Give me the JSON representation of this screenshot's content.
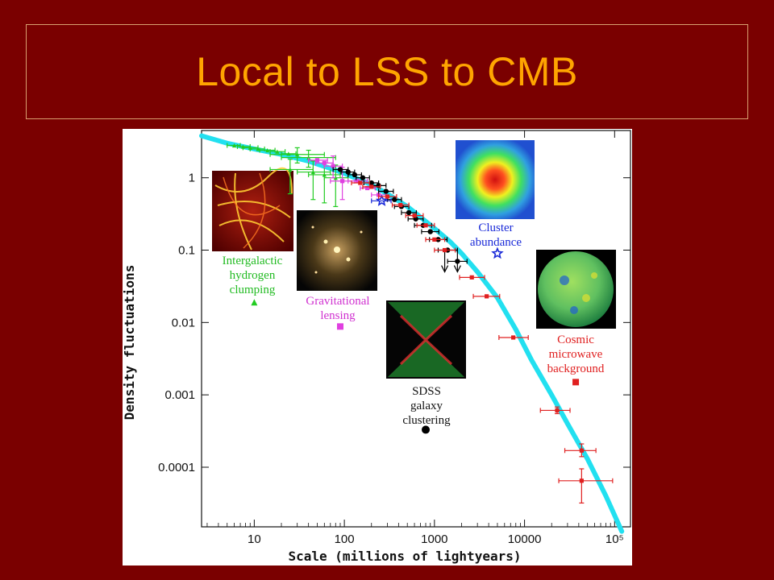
{
  "slide": {
    "title": "Local to LSS to CMB"
  },
  "colors": {
    "background": "#7a0000",
    "title": "#ffa500",
    "fit_curve": "#22e0f0",
    "lyman_alpha": "#22cc22",
    "lensing": "#e040e0",
    "sdss": "#000000",
    "cluster": "#1a2ad8",
    "cmb": "#e02020"
  },
  "insets": {
    "lyman": {
      "label_lines": [
        "Intergalactic",
        "hydrogen",
        "clumping"
      ]
    },
    "lensing": {
      "label_lines": [
        "Gravitational",
        "lensing"
      ]
    },
    "sdss": {
      "label_lines": [
        "SDSS",
        "galaxy",
        "clustering"
      ]
    },
    "cluster": {
      "label_lines": [
        "Cluster",
        "abundance"
      ]
    },
    "cmb": {
      "label_lines": [
        "Cosmic",
        "microwave",
        "background"
      ]
    }
  },
  "chart_data": {
    "type": "scatter",
    "xlabel": "Scale (millions of lightyears)",
    "ylabel": "Density fluctuations",
    "x_scale": "log",
    "y_scale": "log",
    "xlim": [
      2.6,
      150000
    ],
    "ylim": [
      1.5e-05,
      4.5
    ],
    "x_ticks": [
      {
        "value": 10,
        "label": "10"
      },
      {
        "value": 100,
        "label": "100"
      },
      {
        "value": 1000,
        "label": "1000"
      },
      {
        "value": 10000,
        "label": "10000"
      },
      {
        "value": 100000,
        "label": "10⁵"
      }
    ],
    "y_ticks": [
      {
        "value": 1,
        "label": "1"
      },
      {
        "value": 0.1,
        "label": "0.1"
      },
      {
        "value": 0.01,
        "label": "0.01"
      },
      {
        "value": 0.001,
        "label": "0.001"
      },
      {
        "value": 0.0001,
        "label": "0.0001"
      }
    ],
    "fit_curve": [
      [
        2.6,
        3.8
      ],
      [
        5,
        3.0
      ],
      [
        10,
        2.5
      ],
      [
        20,
        2.1
      ],
      [
        40,
        1.7
      ],
      [
        70,
        1.35
      ],
      [
        100,
        1.15
      ],
      [
        200,
        0.8
      ],
      [
        300,
        0.6
      ],
      [
        500,
        0.4
      ],
      [
        800,
        0.25
      ],
      [
        1000,
        0.2
      ],
      [
        1500,
        0.13
      ],
      [
        2000,
        0.09
      ],
      [
        3000,
        0.05
      ],
      [
        5000,
        0.022
      ],
      [
        8000,
        0.008
      ],
      [
        12000,
        0.003
      ],
      [
        20000,
        0.001
      ],
      [
        30000,
        0.0004
      ],
      [
        50000,
        0.00013
      ],
      [
        80000,
        4e-05
      ],
      [
        120000,
        1.3e-05
      ]
    ],
    "series": [
      {
        "name": "Intergalactic hydrogen clumping",
        "color_key": "lyman_alpha",
        "marker": "triangle",
        "legend_point": [
          10,
          0.019
        ],
        "points": [
          {
            "x": 6,
            "y": 2.8,
            "xerr": [
              5,
              7
            ]
          },
          {
            "x": 7.5,
            "y": 2.7,
            "xerr": [
              6.5,
              9
            ]
          },
          {
            "x": 9,
            "y": 2.6,
            "xerr": [
              7.5,
              11
            ]
          },
          {
            "x": 11,
            "y": 2.5,
            "xerr": [
              9,
              13
            ]
          },
          {
            "x": 14,
            "y": 2.4,
            "xerr": [
              11.5,
              17
            ]
          },
          {
            "x": 18,
            "y": 2.3,
            "xerr": [
              15,
              22
            ]
          },
          {
            "x": 24,
            "y": 2.15,
            "xerr": [
              20,
              29
            ]
          },
          {
            "x": 30,
            "y": 2.1,
            "xerr": [
              15,
              60
            ],
            "yerr": [
              1.6,
              2.6
            ]
          },
          {
            "x": 40,
            "y": 1.9,
            "xerr": [
              20,
              80
            ],
            "yerr": [
              1.4,
              2.4
            ]
          },
          {
            "x": 25,
            "y": 1.3,
            "xerr": [
              15,
              45
            ],
            "yerr": [
              0.6,
              1.8
            ]
          },
          {
            "x": 45,
            "y": 1.2,
            "xerr": [
              30,
              70
            ],
            "yerr": [
              0.5,
              1.7
            ]
          },
          {
            "x": 60,
            "y": 1.1,
            "xerr": [
              40,
              90
            ],
            "yerr": [
              0.45,
              1.6
            ]
          },
          {
            "x": 80,
            "y": 1.0,
            "xerr": [
              60,
              110
            ],
            "yerr": [
              0.4,
              1.5
            ]
          }
        ]
      },
      {
        "name": "Gravitational lensing",
        "color_key": "lensing",
        "marker": "square",
        "legend_point": [
          90,
          0.0088
        ],
        "points": [
          {
            "x": 50,
            "y": 1.75,
            "xerr": [
              40,
              65
            ]
          },
          {
            "x": 60,
            "y": 1.6,
            "xerr": [
              48,
              75
            ]
          },
          {
            "x": 75,
            "y": 1.45,
            "xerr": [
              60,
              95
            ],
            "yerr": [
              1.0,
              2.0
            ]
          },
          {
            "x": 95,
            "y": 0.9,
            "xerr": [
              70,
              130
            ],
            "yerr": [
              0.5,
              1.4
            ]
          },
          {
            "x": 140,
            "y": 0.9,
            "xerr": [
              110,
              180
            ]
          },
          {
            "x": 180,
            "y": 0.72,
            "xerr": [
              150,
              220
            ]
          },
          {
            "x": 240,
            "y": 0.58,
            "xerr": [
              200,
              290
            ]
          }
        ]
      },
      {
        "name": "SDSS galaxy clustering",
        "color_key": "sdss",
        "marker": "circle",
        "legend_point": [
          800,
          0.00033
        ],
        "upper_limits": [
          1300,
          1800
        ],
        "points": [
          {
            "x": 90,
            "y": 1.3,
            "xerr": [
              75,
              110
            ]
          },
          {
            "x": 110,
            "y": 1.2,
            "xerr": [
              92,
              130
            ]
          },
          {
            "x": 130,
            "y": 1.1,
            "xerr": [
              110,
              155
            ]
          },
          {
            "x": 160,
            "y": 1.0,
            "xerr": [
              135,
              190
            ]
          },
          {
            "x": 200,
            "y": 0.85,
            "xerr": [
              165,
              240
            ]
          },
          {
            "x": 240,
            "y": 0.78,
            "xerr": [
              200,
              290
            ]
          },
          {
            "x": 290,
            "y": 0.65,
            "xerr": [
              240,
              350
            ]
          },
          {
            "x": 360,
            "y": 0.5,
            "xerr": [
              300,
              430
            ]
          },
          {
            "x": 430,
            "y": 0.4,
            "xerr": [
              360,
              520
            ]
          },
          {
            "x": 520,
            "y": 0.33,
            "xerr": [
              430,
              630
            ]
          },
          {
            "x": 620,
            "y": 0.27,
            "xerr": [
              510,
              750
            ]
          },
          {
            "x": 750,
            "y": 0.22,
            "xerr": [
              600,
              930
            ]
          },
          {
            "x": 900,
            "y": 0.18,
            "xerr": [
              720,
              1120
            ]
          },
          {
            "x": 1100,
            "y": 0.14,
            "xerr": [
              880,
              1380
            ]
          },
          {
            "x": 1400,
            "y": 0.1,
            "xerr": [
              1100,
              1800
            ]
          },
          {
            "x": 1800,
            "y": 0.07,
            "xerr": [
              1400,
              2300
            ]
          }
        ]
      },
      {
        "name": "Cluster abundance",
        "color_key": "cluster",
        "marker": "star",
        "legend_point": [
          5000,
          0.09
        ],
        "points": [
          {
            "x": 260,
            "y": 0.48,
            "xerr": [
              200,
              330
            ]
          }
        ]
      },
      {
        "name": "Cosmic microwave background",
        "color_key": "cmb",
        "marker": "square",
        "legend_point": [
          37000,
          0.0015
        ],
        "points": [
          {
            "x": 150,
            "y": 0.85,
            "xerr": [
              120,
              190
            ]
          },
          {
            "x": 200,
            "y": 0.75,
            "xerr": [
              160,
              250
            ]
          },
          {
            "x": 300,
            "y": 0.55,
            "xerr": [
              240,
              380
            ]
          },
          {
            "x": 420,
            "y": 0.42,
            "xerr": [
              340,
              520
            ]
          },
          {
            "x": 600,
            "y": 0.3,
            "xerr": [
              480,
              750
            ]
          },
          {
            "x": 800,
            "y": 0.22,
            "xerr": [
              640,
              1000
            ]
          },
          {
            "x": 1000,
            "y": 0.14,
            "xerr": [
              800,
              1300
            ]
          },
          {
            "x": 1300,
            "y": 0.1,
            "xerr": [
              1000,
              1700
            ]
          },
          {
            "x": 2600,
            "y": 0.042,
            "xerr": [
              1900,
              3600
            ]
          },
          {
            "x": 3800,
            "y": 0.023,
            "xerr": [
              2700,
              5300
            ]
          },
          {
            "x": 7500,
            "y": 0.0062,
            "xerr": [
              5200,
              11000
            ]
          },
          {
            "x": 23000,
            "y": 0.00061,
            "xerr": [
              15000,
              32000
            ],
            "yerr": [
              0.00055,
              0.00068
            ]
          },
          {
            "x": 43000,
            "y": 0.00017,
            "xerr": [
              28000,
              62000
            ],
            "yerr": [
              0.00014,
              0.00021
            ]
          },
          {
            "x": 43000,
            "y": 6.5e-05,
            "xerr": [
              24000,
              95000
            ],
            "yerr": [
              3.2e-05,
              9.5e-05
            ]
          }
        ]
      }
    ]
  }
}
